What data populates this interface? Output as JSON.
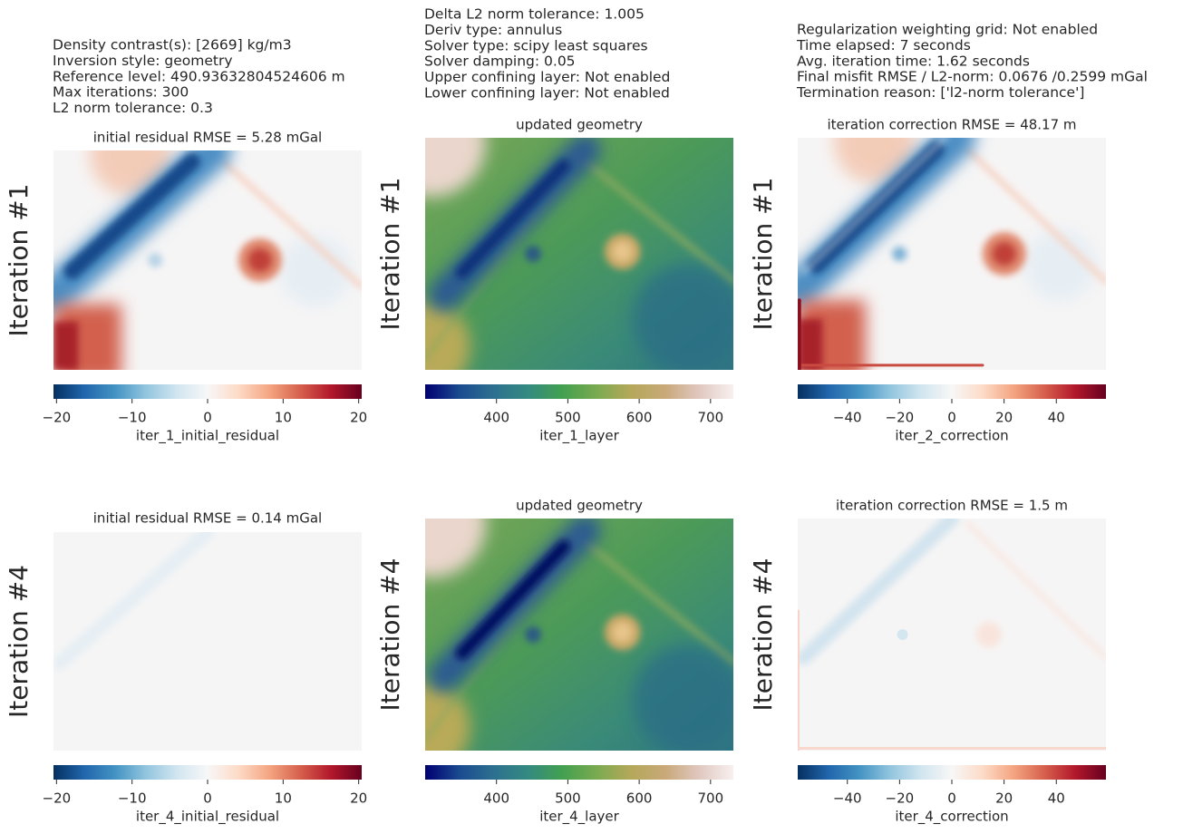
{
  "chart_data": [
    {
      "type": "heatmap",
      "title": "initial residual RMSE = 5.28 mGal",
      "ylabel": "Iteration #1",
      "xlabel": "iter_1_initial_residual",
      "annotations": [
        "Density contrast(s): [2669] kg/m3",
        "Inversion style: geometry",
        "Reference level: 490.93632804524606 m",
        "Max iterations: 300",
        "L2 norm tolerance: 0.3"
      ],
      "xlim": [
        -20.4,
        20.4
      ],
      "xticks": [
        {
          "value": -20,
          "label": "−20"
        },
        {
          "value": -10,
          "label": "−10"
        },
        0,
        10,
        20
      ],
      "colors": [
        "#053061",
        "#2166ac",
        "#4393c3",
        "#92c5de",
        "#d1e5f0",
        "#f7f7f7",
        "#fddbc7",
        "#f4a582",
        "#d6604d",
        "#b2182b",
        "#67001f"
      ]
    },
    {
      "type": "heatmap",
      "title": "updated geometry",
      "ylabel": "Iteration #1",
      "xlabel": "iter_1_layer",
      "annotations": [
        "Delta L2 norm tolerance: 1.005",
        "Deriv type: annulus",
        "Solver type: scipy least squares",
        "Solver damping: 0.05",
        "Upper confining layer: Not enabled",
        "Lower confining layer: Not enabled"
      ],
      "xlim": [
        300,
        732
      ],
      "xticks": [
        400,
        500,
        600,
        700
      ],
      "colors": [
        "#000070",
        "#1a4a90",
        "#2d7090",
        "#348a80",
        "#42a050",
        "#7aaa50",
        "#b4a85a",
        "#c8a878",
        "#e0c8c0",
        "#f8f0f0"
      ]
    },
    {
      "type": "heatmap",
      "title": "iteration correction RMSE = 48.17 m",
      "ylabel": "Iteration #1",
      "xlabel": "iter_2_correction",
      "annotations": [
        "Regularization weighting grid: Not enabled",
        "Time elapsed: 7 seconds",
        "Avg. iteration time: 1.62 seconds",
        "Final misfit RMSE / L2-norm: 0.0676 /0.2599 mGal",
        "Termination reason: ['l2-norm tolerance']"
      ],
      "xlim": [
        -59,
        59
      ],
      "xticks": [
        {
          "value": -40,
          "label": "−40"
        },
        {
          "value": -20,
          "label": "−20"
        },
        0,
        20,
        40
      ],
      "colors": [
        "#053061",
        "#2166ac",
        "#4393c3",
        "#92c5de",
        "#d1e5f0",
        "#f7f7f7",
        "#fddbc7",
        "#f4a582",
        "#d6604d",
        "#b2182b",
        "#67001f"
      ]
    },
    {
      "type": "heatmap",
      "title": "initial residual RMSE = 0.14 mGal",
      "ylabel": "Iteration #4",
      "xlabel": "iter_4_initial_residual",
      "xlim": [
        -20.4,
        20.4
      ],
      "xticks": [
        {
          "value": -20,
          "label": "−20"
        },
        {
          "value": -10,
          "label": "−10"
        },
        0,
        10,
        20
      ],
      "colors": [
        "#053061",
        "#2166ac",
        "#4393c3",
        "#92c5de",
        "#d1e5f0",
        "#f7f7f7",
        "#fddbc7",
        "#f4a582",
        "#d6604d",
        "#b2182b",
        "#67001f"
      ]
    },
    {
      "type": "heatmap",
      "title": "updated geometry",
      "ylabel": "Iteration #4",
      "xlabel": "iter_4_layer",
      "xlim": [
        300,
        732
      ],
      "xticks": [
        400,
        500,
        600,
        700
      ],
      "colors": [
        "#000070",
        "#1a4a90",
        "#2d7090",
        "#348a80",
        "#42a050",
        "#7aaa50",
        "#b4a85a",
        "#c8a878",
        "#e0c8c0",
        "#f8f0f0"
      ]
    },
    {
      "type": "heatmap",
      "title": "iteration correction RMSE = 1.5 m",
      "ylabel": "Iteration #4",
      "xlabel": "iter_4_correction",
      "xlim": [
        -59,
        59
      ],
      "xticks": [
        {
          "value": -40,
          "label": "−40"
        },
        {
          "value": -20,
          "label": "−20"
        },
        0,
        20,
        40
      ],
      "colors": [
        "#053061",
        "#2166ac",
        "#4393c3",
        "#92c5de",
        "#d1e5f0",
        "#f7f7f7",
        "#fddbc7",
        "#f4a582",
        "#d6604d",
        "#b2182b",
        "#67001f"
      ]
    }
  ]
}
